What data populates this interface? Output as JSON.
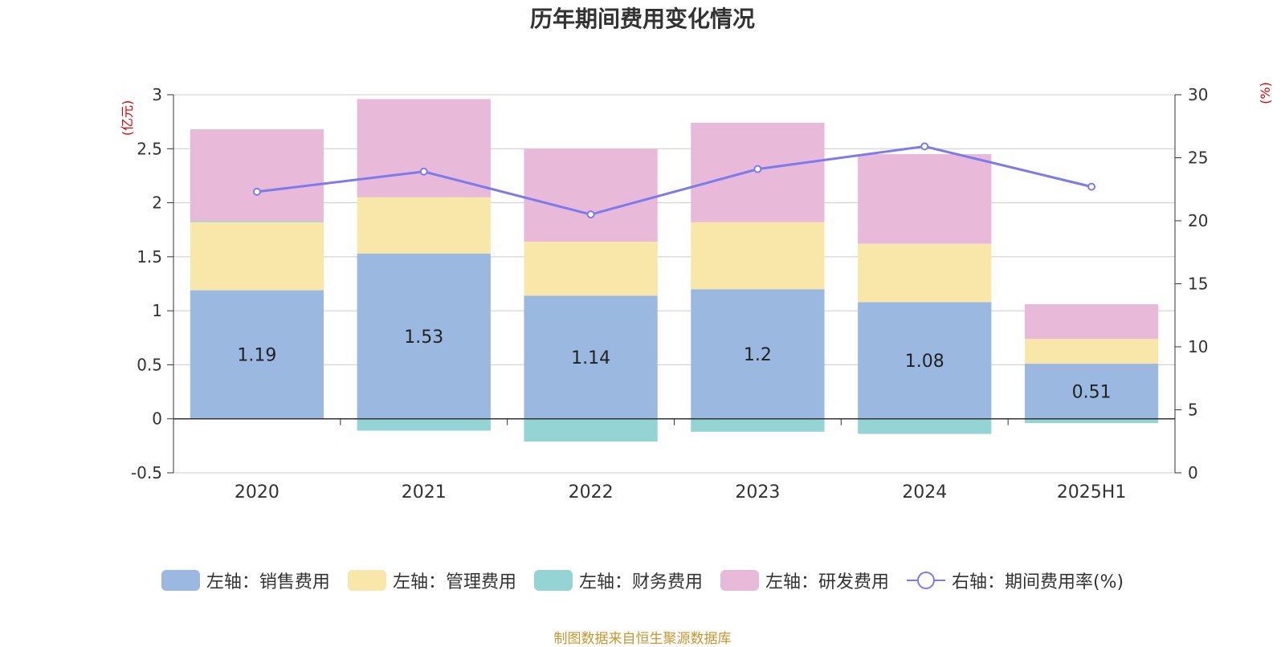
{
  "chart_data": {
    "type": "bar",
    "title": "历年期间费用变化情况",
    "categories": [
      "2020",
      "2021",
      "2022",
      "2023",
      "2024",
      "2025H1"
    ],
    "left_axis": {
      "unit_label": "(亿元)",
      "min": -0.5,
      "max": 3,
      "ticks": [
        -0.5,
        0,
        0.5,
        1,
        1.5,
        2,
        2.5,
        3
      ]
    },
    "right_axis": {
      "unit_label": "(%)",
      "min": 0,
      "max": 30,
      "ticks": [
        0,
        5,
        10,
        15,
        20,
        25,
        30
      ]
    },
    "grid": true,
    "stacked": true,
    "series": [
      {
        "name": "左轴：销售费用",
        "type": "bar",
        "axis": "left",
        "color": "#9bb8e1",
        "values": [
          1.19,
          1.53,
          1.14,
          1.2,
          1.08,
          0.51
        ],
        "labels": [
          "1.19",
          "1.53",
          "1.14",
          "1.2",
          "1.08",
          "0.51"
        ]
      },
      {
        "name": "左轴：管理费用",
        "type": "bar",
        "axis": "left",
        "color": "#f8e7a8",
        "values": [
          0.63,
          0.52,
          0.5,
          0.62,
          0.54,
          0.23
        ]
      },
      {
        "name": "左轴：财务费用",
        "type": "bar",
        "axis": "left",
        "color": "#94d4d4",
        "values": [
          0.01,
          -0.11,
          -0.21,
          -0.12,
          -0.14,
          -0.04
        ]
      },
      {
        "name": "左轴：研发费用",
        "type": "bar",
        "axis": "left",
        "color": "#e8b9d9",
        "values": [
          0.85,
          0.91,
          0.86,
          0.92,
          0.83,
          0.32
        ]
      },
      {
        "name": "右轴：期间费用率(%)",
        "type": "line",
        "axis": "right",
        "color": "#7b7bee",
        "values": [
          22.3,
          23.9,
          20.5,
          24.1,
          25.9,
          22.7
        ]
      }
    ],
    "legend_position": "bottom"
  },
  "source_note": "制图数据来自恒生聚源数据库"
}
